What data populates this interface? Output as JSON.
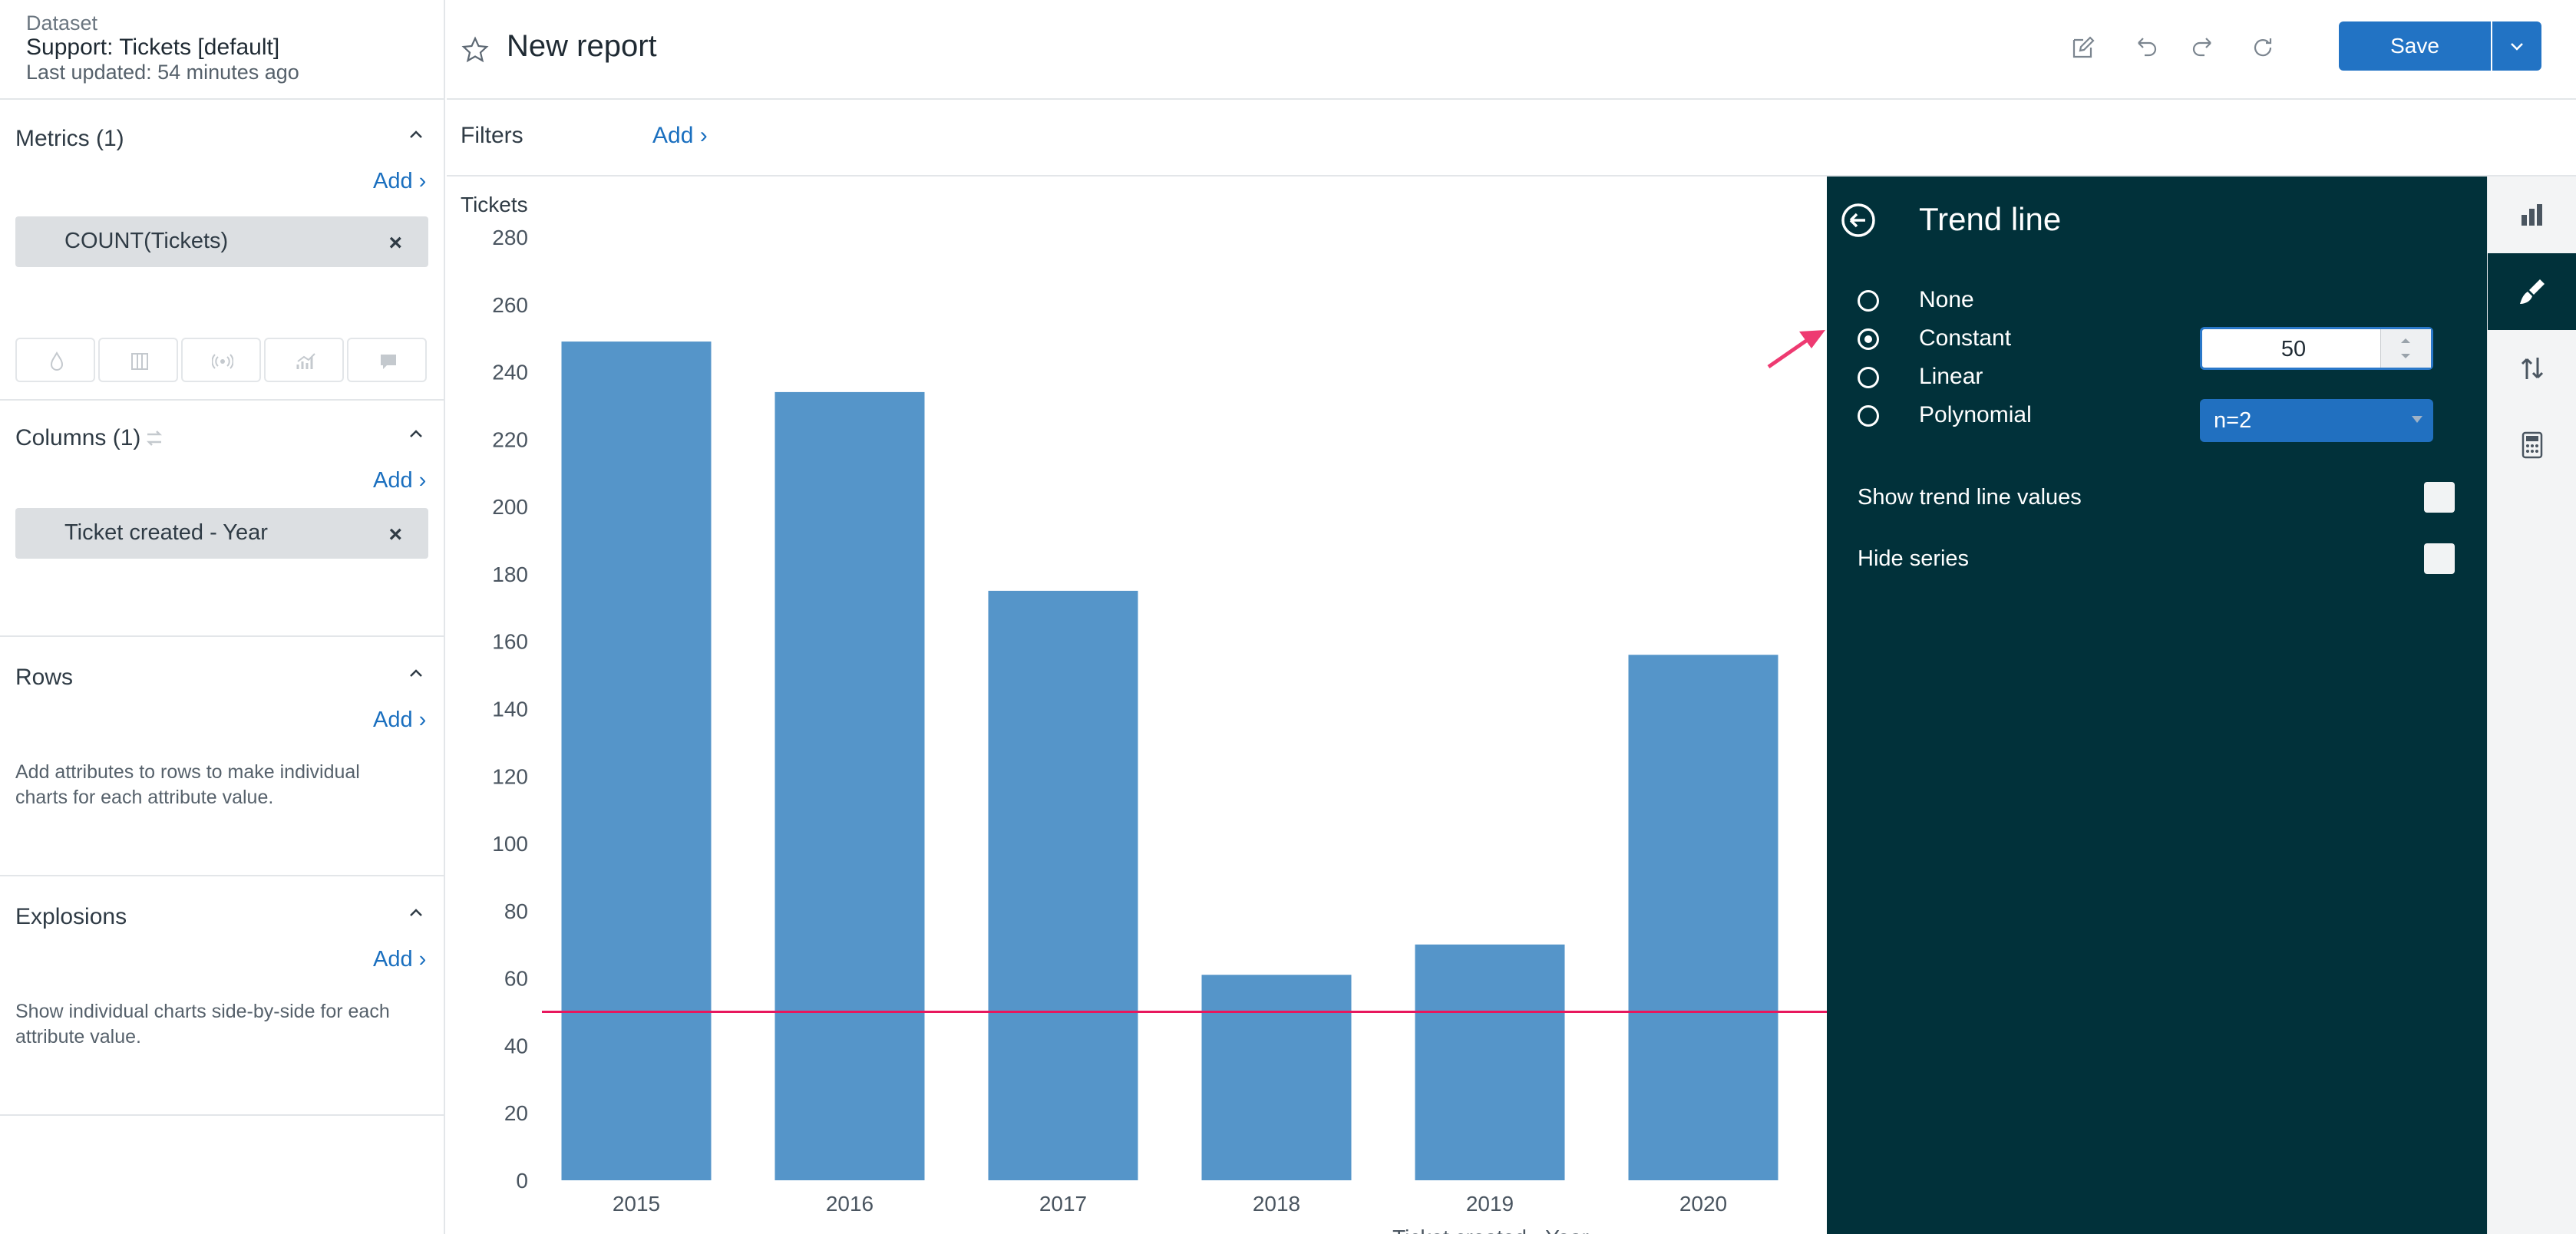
{
  "dataset": {
    "label": "Dataset",
    "name": "Support: Tickets [default]",
    "updated": "Last updated: 54 minutes ago"
  },
  "sections": {
    "metrics": {
      "title": "Metrics (1)",
      "add": "Add ›",
      "pill": "COUNT(Tickets)"
    },
    "columns": {
      "title": "Columns (1)",
      "add": "Add ›",
      "pill": "Ticket created - Year"
    },
    "rows": {
      "title": "Rows",
      "add": "Add ›",
      "help": "Add attributes to rows to make individual charts for each attribute value."
    },
    "explosions": {
      "title": "Explosions",
      "add": "Add ›",
      "help": "Show individual charts side-by-side for each attribute value."
    },
    "remove_symbol": "×"
  },
  "header": {
    "title": "New report",
    "save_label": "Save"
  },
  "filters": {
    "label": "Filters",
    "add": "Add ›"
  },
  "trend": {
    "title": "Trend line",
    "options": [
      "None",
      "Constant",
      "Linear",
      "Polynomial"
    ],
    "selected": "Constant",
    "constant_value": "50",
    "polynomial_degree": "n=2",
    "show_values_label": "Show trend line values",
    "hide_series_label": "Hide series",
    "show_values_checked": false,
    "hide_series_checked": false
  },
  "colors": {
    "bar": "#5595c9",
    "trend_line": "#e8175d",
    "panel_bg": "#01313a",
    "accent": "#2273c4",
    "annotation_arrow": "#ee3a71"
  },
  "chart_data": {
    "type": "bar",
    "ylabel": "Tickets",
    "xlabel": "Ticket created - Year",
    "categories": [
      "2015",
      "2016",
      "2017",
      "2018",
      "2019",
      "2020"
    ],
    "values": [
      249,
      234,
      175,
      61,
      70,
      156
    ],
    "ylim": [
      0,
      280
    ],
    "yticks": [
      0,
      20,
      40,
      60,
      80,
      100,
      120,
      140,
      160,
      180,
      200,
      220,
      240,
      260,
      280
    ],
    "trend_line": {
      "type": "constant",
      "value": 50
    },
    "grid": false,
    "legend": "none"
  }
}
